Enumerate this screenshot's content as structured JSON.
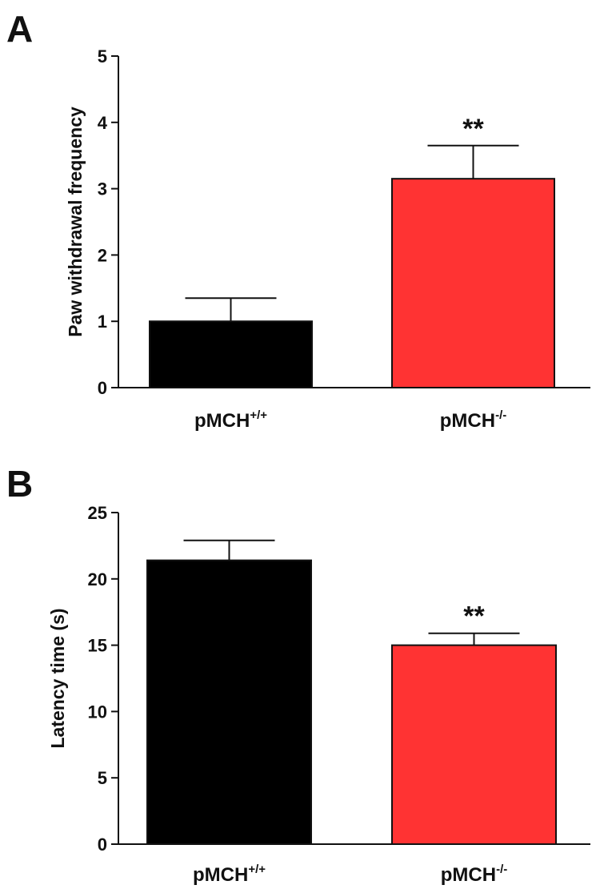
{
  "chart_data": [
    {
      "panel_label": "A",
      "type": "bar",
      "ylabel": "Paw withdrawal frequency",
      "categories": [
        {
          "base": "pMCH",
          "sup": "+/+"
        },
        {
          "base": "pMCH",
          "sup": "-/-"
        }
      ],
      "values": [
        1.0,
        3.15
      ],
      "errors": [
        0.35,
        0.5
      ],
      "colors": [
        "#000000",
        "#ff3333"
      ],
      "ylim": [
        0,
        5
      ],
      "yticks": [
        0,
        1,
        2,
        3,
        4,
        5
      ],
      "annotations": [
        "",
        "**"
      ]
    },
    {
      "panel_label": "B",
      "type": "bar",
      "ylabel": "Latency time (s)",
      "categories": [
        {
          "base": "pMCH",
          "sup": "+/+"
        },
        {
          "base": "pMCH",
          "sup": "-/-"
        }
      ],
      "values": [
        21.4,
        15.0
      ],
      "errors": [
        1.5,
        0.9
      ],
      "colors": [
        "#000000",
        "#ff3333"
      ],
      "ylim": [
        0,
        25
      ],
      "yticks": [
        0,
        5,
        10,
        15,
        20,
        25
      ],
      "annotations": [
        "",
        "**"
      ]
    }
  ]
}
